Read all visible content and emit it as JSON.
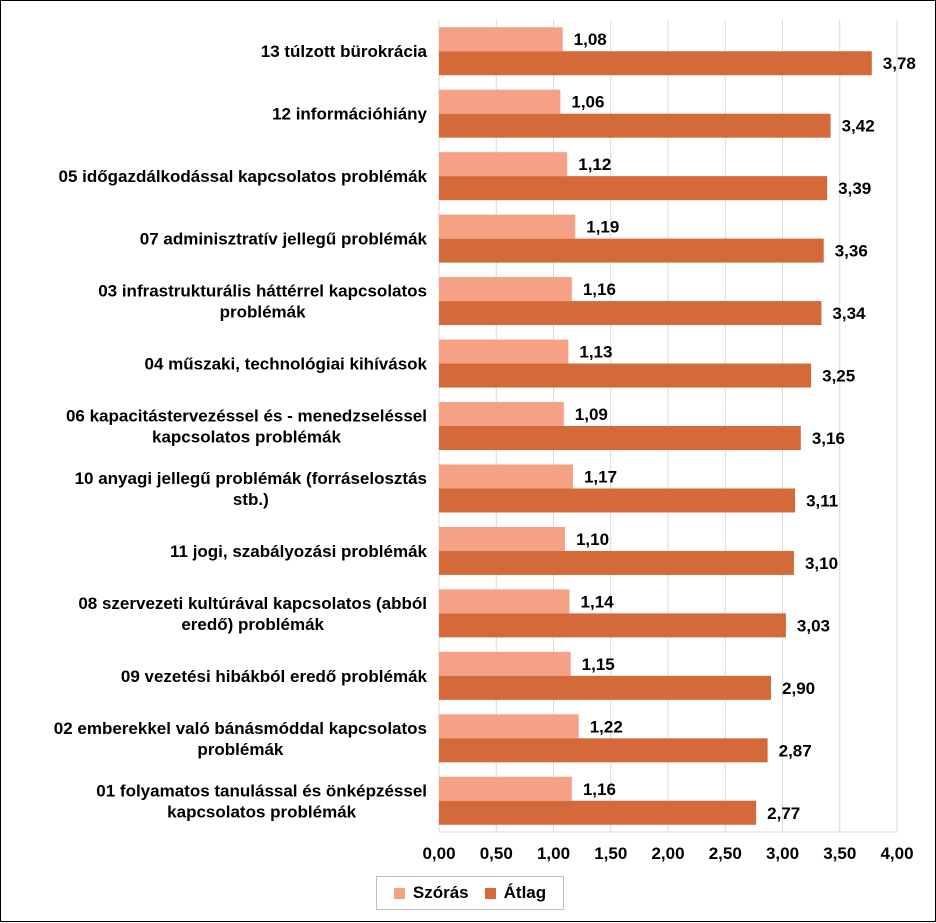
{
  "chart_data": {
    "type": "bar",
    "orientation": "horizontal",
    "categories": [
      "13 túlzott bürokrácia",
      "12 információhiány",
      "05 időgazdálkodással kapcsolatos problémák",
      "07 adminisztratív jellegű problémák",
      "03 infrastrukturális háttérrel kapcsolatos problémák",
      "04 műszaki, technológiai kihívások",
      "06 kapacitástervezéssel és - menedzseléssel kapcsolatos problémák",
      "10 anyagi jellegű problémák (forráselosztás stb.)",
      "11 jogi, szabályozási problémák",
      "08 szervezeti kultúrával kapcsolatos (abból eredő) problémák",
      "09 vezetési hibákból eredő problémák",
      "02 emberekkel való bánásmóddal kapcsolatos problémák",
      "01 folyamatos tanulással és önképzéssel kapcsolatos problémák"
    ],
    "category_lines": [
      [
        "13 túlzott bürokrácia"
      ],
      [
        "12 információhiány"
      ],
      [
        "05 időgazdálkodással kapcsolatos problémák"
      ],
      [
        "07 adminisztratív jellegű problémák"
      ],
      [
        "03 infrastrukturális háttérrel kapcsolatos",
        "problémák"
      ],
      [
        "04 műszaki, technológiai kihívások"
      ],
      [
        "06 kapacitástervezéssel és - menedzseléssel",
        "kapcsolatos problémák"
      ],
      [
        "10 anyagi jellegű problémák (forráselosztás",
        "stb.)"
      ],
      [
        "11 jogi, szabályozási problémák"
      ],
      [
        "08 szervezeti kultúrával kapcsolatos (abból",
        "eredő) problémák"
      ],
      [
        "09 vezetési hibákból eredő problémák"
      ],
      [
        "02 emberekkel való bánásmóddal kapcsolatos",
        "problémák"
      ],
      [
        "01 folyamatos tanulással és önképzéssel",
        "kapcsolatos problémák"
      ]
    ],
    "series": [
      {
        "name": "Szórás",
        "color": "#f4a185",
        "values": [
          1.08,
          1.06,
          1.12,
          1.19,
          1.16,
          1.13,
          1.09,
          1.17,
          1.1,
          1.14,
          1.15,
          1.22,
          1.16
        ],
        "labels": [
          "1,08",
          "1,06",
          "1,12",
          "1,19",
          "1,16",
          "1,13",
          "1,09",
          "1,17",
          "1,10",
          "1,14",
          "1,15",
          "1,22",
          "1,16"
        ]
      },
      {
        "name": "Átlag",
        "color": "#d4693a",
        "values": [
          3.78,
          3.42,
          3.39,
          3.36,
          3.34,
          3.25,
          3.16,
          3.11,
          3.1,
          3.03,
          2.9,
          2.87,
          2.77
        ],
        "labels": [
          "3,78",
          "3,42",
          "3,39",
          "3,36",
          "3,34",
          "3,25",
          "3,16",
          "3,11",
          "3,10",
          "3,03",
          "2,90",
          "2,87",
          "2,77"
        ]
      }
    ],
    "xlim": [
      0,
      4
    ],
    "xticks": [
      0,
      0.5,
      1,
      1.5,
      2,
      2.5,
      3,
      3.5,
      4
    ],
    "xtick_labels": [
      "0,00",
      "0,50",
      "1,00",
      "1,50",
      "2,00",
      "2,50",
      "3,00",
      "3,50",
      "4,00"
    ],
    "grid": "vertical",
    "legend_position": "bottom"
  }
}
